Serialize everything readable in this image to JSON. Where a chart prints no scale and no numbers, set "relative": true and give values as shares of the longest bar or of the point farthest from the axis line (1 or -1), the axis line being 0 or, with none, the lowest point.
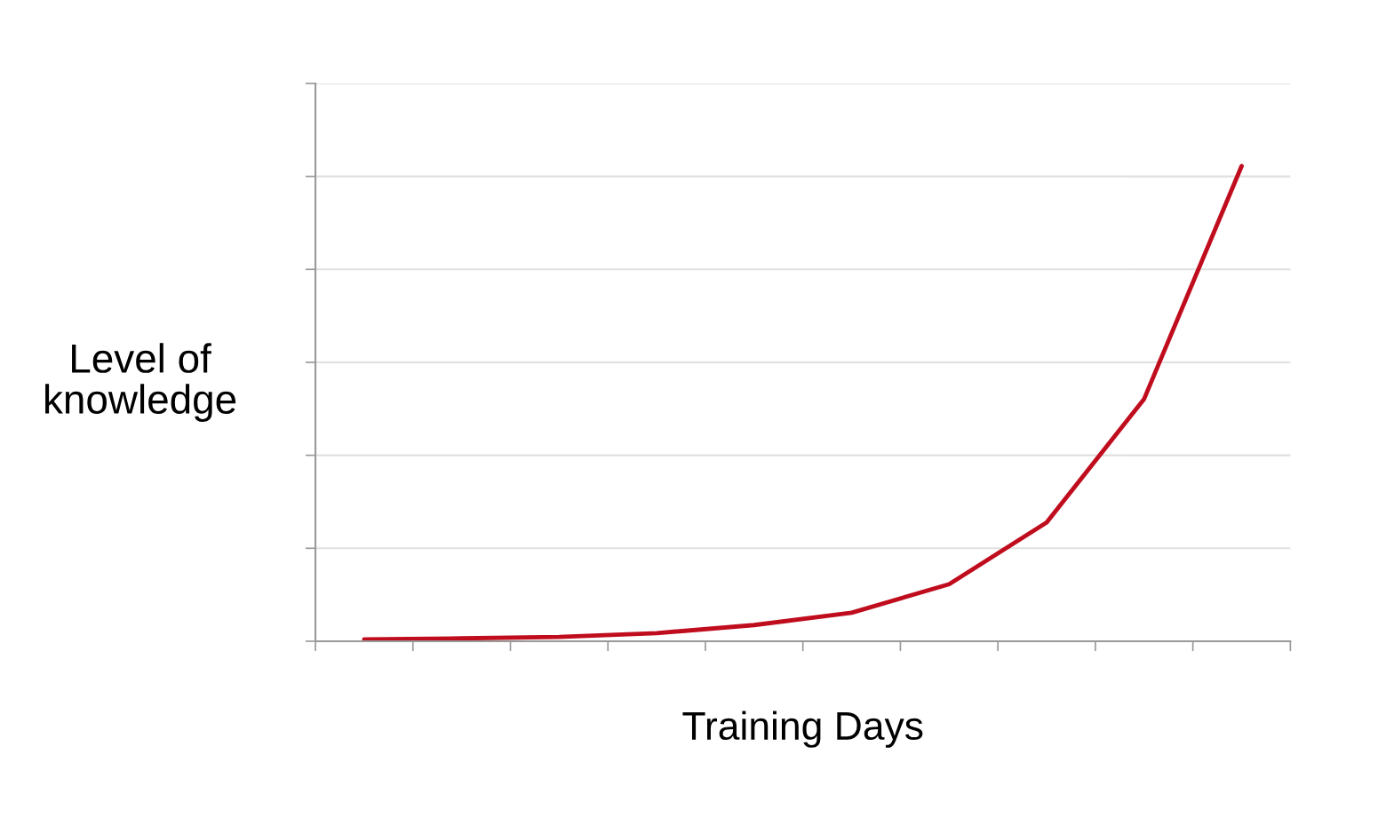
{
  "chart_data": {
    "type": "line",
    "xlabel": "Training Days",
    "ylabel": "Level of\nknowledge",
    "categories": [
      null,
      null,
      null,
      null,
      null,
      null,
      null,
      null,
      null,
      null
    ],
    "series": [
      {
        "color": "#c00d1e",
        "values": [
          0.004,
          0.006,
          0.009,
          0.017,
          0.034,
          0.06,
          0.12,
          0.25,
          0.51,
          1
        ]
      }
    ],
    "relative": true,
    "grid": "y",
    "legend": false,
    "marker": "none",
    "line_style": "solid"
  }
}
